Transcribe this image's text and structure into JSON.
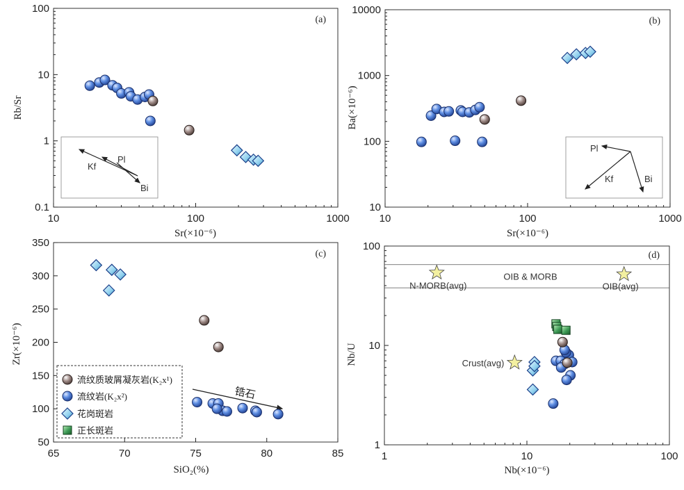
{
  "colors": {
    "tuff": "#8a7470",
    "rhyolite": "#4a78d0",
    "granite": "#8fd0ee",
    "syenite": "#3d9a55",
    "star": "#f3f0a0",
    "axis": "#333333"
  },
  "legend": {
    "items": [
      {
        "key": "tuff",
        "label": "流纹质玻屑凝灰岩(K₂x¹)",
        "symbol": "circle"
      },
      {
        "key": "rhyolite",
        "label": "流纹岩(K₂x²)",
        "symbol": "circle"
      },
      {
        "key": "granite",
        "label": "花岗斑岩",
        "symbol": "diamond"
      },
      {
        "key": "syenite",
        "label": "正长斑岩",
        "symbol": "square"
      }
    ]
  },
  "chart_data": [
    {
      "id": "a",
      "type": "scatter",
      "panel_label": "(a)",
      "xlabel": "Sr(×10⁻⁶)",
      "ylabel": "Rb/Sr",
      "xscale": "log",
      "yscale": "log",
      "xlim": [
        10,
        1000
      ],
      "ylim": [
        0.1,
        100
      ],
      "xticks": [
        10,
        100,
        1000
      ],
      "xtick_labels": [
        "10",
        "100",
        "1000"
      ],
      "yticks": [
        0.1,
        1,
        10,
        100
      ],
      "ytick_labels": [
        "0.1",
        "1",
        "10",
        "100"
      ],
      "series": [
        {
          "key": "rhyolite",
          "x": [
            18,
            21,
            23,
            26,
            28,
            30,
            34,
            35,
            39,
            44,
            47,
            48
          ],
          "y": [
            6.8,
            7.6,
            8.3,
            6.9,
            6.3,
            5.2,
            5.4,
            4.7,
            4.2,
            4.6,
            5.0,
            2.0
          ]
        },
        {
          "key": "tuff",
          "x": [
            50,
            90
          ],
          "y": [
            4.0,
            1.45
          ]
        },
        {
          "key": "granite",
          "x": [
            195,
            225,
            255,
            275
          ],
          "y": [
            0.72,
            0.57,
            0.52,
            0.5
          ]
        }
      ],
      "inset": {
        "labels": [
          "Kf",
          "Pl",
          "Bi"
        ]
      }
    },
    {
      "id": "b",
      "type": "scatter",
      "panel_label": "(b)",
      "xlabel": "Sr(×10⁻⁶)",
      "ylabel": "Ba(×10⁻⁶)",
      "xscale": "log",
      "yscale": "log",
      "xlim": [
        10,
        1000
      ],
      "ylim": [
        10,
        10000
      ],
      "xticks": [
        10,
        100,
        1000
      ],
      "xtick_labels": [
        "10",
        "100",
        "1000"
      ],
      "yticks": [
        10,
        100,
        1000,
        10000
      ],
      "ytick_labels": [
        "10",
        "100",
        "1000",
        "10000"
      ],
      "series": [
        {
          "key": "rhyolite",
          "x": [
            18,
            21,
            23,
            26,
            28,
            31,
            34,
            35,
            39,
            43,
            46,
            48
          ],
          "y": [
            98,
            245,
            310,
            280,
            285,
            102,
            295,
            280,
            275,
            300,
            330,
            98
          ]
        },
        {
          "key": "tuff",
          "x": [
            50,
            90
          ],
          "y": [
            215,
            415
          ]
        },
        {
          "key": "granite",
          "x": [
            190,
            220,
            255,
            275
          ],
          "y": [
            1850,
            2100,
            2200,
            2300
          ]
        }
      ],
      "inset": {
        "labels": [
          "Pl",
          "Kf",
          "Bi"
        ]
      }
    },
    {
      "id": "c",
      "type": "scatter",
      "panel_label": "(c)",
      "xlabel": "SiO₂(%)",
      "ylabel": "Zr(×10⁻⁶)",
      "xscale": "linear",
      "yscale": "linear",
      "xlim": [
        65,
        85
      ],
      "ylim": [
        50,
        350
      ],
      "xticks": [
        65,
        70,
        75,
        80,
        85
      ],
      "xtick_labels": [
        "65",
        "70",
        "75",
        "80",
        "85"
      ],
      "yticks": [
        50,
        100,
        150,
        200,
        250,
        300,
        350
      ],
      "ytick_labels": [
        "50",
        "100",
        "150",
        "200",
        "250",
        "300",
        "350"
      ],
      "series": [
        {
          "key": "granite",
          "x": [
            68.0,
            69.1,
            69.7,
            68.9
          ],
          "y": [
            316,
            309,
            302,
            278
          ]
        },
        {
          "key": "tuff",
          "x": [
            75.6,
            76.6
          ],
          "y": [
            233,
            193
          ]
        },
        {
          "key": "rhyolite",
          "x": [
            75.1,
            76.2,
            76.6,
            76.9,
            77.2,
            78.3,
            79.2,
            80.8,
            76.5,
            79.3
          ],
          "y": [
            110,
            108,
            108,
            97,
            96,
            101,
            97,
            92,
            100,
            95
          ]
        }
      ],
      "annotation": {
        "text": "锆石"
      }
    },
    {
      "id": "d",
      "type": "scatter",
      "panel_label": "(d)",
      "xlabel": "Nb(×10⁻⁶)",
      "ylabel": "Nb/U",
      "xscale": "log",
      "yscale": "log",
      "xlim": [
        1,
        100
      ],
      "ylim": [
        1,
        100
      ],
      "xticks": [
        1,
        10,
        100
      ],
      "xtick_labels": [
        "1",
        "10",
        "100"
      ],
      "yticks": [
        1,
        10,
        100
      ],
      "ytick_labels": [
        "1",
        "10",
        "100"
      ],
      "band": {
        "y0": 38,
        "y1": 65,
        "label": "OIB & MORB"
      },
      "stars": [
        {
          "label": "N-MORB(avg)",
          "x": 2.33,
          "y": 54
        },
        {
          "label": "OIB(avg)",
          "x": 48,
          "y": 52
        },
        {
          "label": "Crust(avg)",
          "x": 8.2,
          "y": 6.7
        }
      ],
      "series": [
        {
          "key": "syenite",
          "x": [
            16.0,
            16.2,
            16.5,
            18.8
          ],
          "y": [
            16.5,
            15.5,
            14.5,
            14.2
          ]
        },
        {
          "key": "rhyolite",
          "x": [
            16.0,
            17.3,
            18.4,
            19.7,
            20.8,
            17.4,
            18.8,
            20.2,
            19.0,
            15.3,
            18.4
          ],
          "y": [
            7.0,
            7.0,
            6.5,
            8.0,
            6.8,
            6.0,
            8.5,
            5.0,
            4.5,
            2.6,
            9.0
          ]
        },
        {
          "key": "tuff",
          "x": [
            17.8,
            19.2
          ],
          "y": [
            10.8,
            6.7
          ]
        },
        {
          "key": "granite",
          "x": [
            11.3,
            11.0,
            11.3,
            11.0
          ],
          "y": [
            6.8,
            5.6,
            6.2,
            3.6
          ]
        }
      ]
    }
  ]
}
